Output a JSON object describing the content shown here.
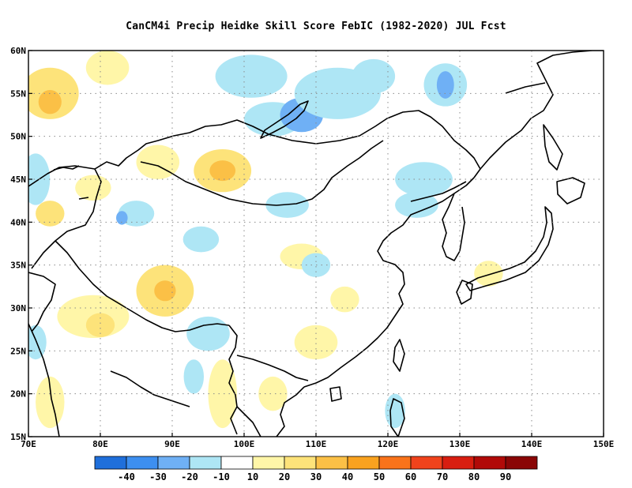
{
  "title": "CanCM4i Precip Heidke Skill Score FebIC (1982-2020) JUL Fcst",
  "lon_ticks": [
    "70E",
    "80E",
    "90E",
    "100E",
    "110E",
    "120E",
    "130E",
    "140E",
    "150E"
  ],
  "lat_ticks": [
    "15N",
    "20N",
    "25N",
    "30N",
    "35N",
    "40N",
    "45N",
    "50N",
    "55N",
    "60N"
  ],
  "extent": {
    "lon": [
      70,
      150
    ],
    "lat": [
      15,
      60
    ]
  },
  "grid": true,
  "colorbar": {
    "colors": [
      "#1f6fdb",
      "#3d8ff0",
      "#6fb0f5",
      "#aee6f5",
      "#ffffff",
      "#fff6a8",
      "#fde37a",
      "#fbc046",
      "#f9a21f",
      "#f9731a",
      "#f0431c",
      "#d81e10",
      "#b10a08",
      "#8a0606"
    ],
    "labels": [
      "-40",
      "-30",
      "-20",
      "-10",
      "10",
      "20",
      "30",
      "40",
      "50",
      "60",
      "70",
      "80",
      "90"
    ]
  },
  "field_patches": [
    {
      "lon": 73,
      "lat": 55,
      "rx": 4,
      "ry": 3,
      "c": "#fde37a"
    },
    {
      "lon": 73,
      "lat": 54,
      "rx": 1.6,
      "ry": 1.4,
      "c": "#fbc046"
    },
    {
      "lon": 81,
      "lat": 58,
      "rx": 3,
      "ry": 2,
      "c": "#fff6a8"
    },
    {
      "lon": 71,
      "lat": 45,
      "rx": 2,
      "ry": 3,
      "c": "#aee6f5"
    },
    {
      "lon": 73,
      "lat": 41,
      "rx": 2,
      "ry": 1.5,
      "c": "#fde37a"
    },
    {
      "lon": 79,
      "lat": 44,
      "rx": 2.5,
      "ry": 1.5,
      "c": "#fff6a8"
    },
    {
      "lon": 88,
      "lat": 47,
      "rx": 3,
      "ry": 2,
      "c": "#fff6a8"
    },
    {
      "lon": 97,
      "lat": 46,
      "rx": 4,
      "ry": 2.5,
      "c": "#fde37a"
    },
    {
      "lon": 97,
      "lat": 46,
      "rx": 1.8,
      "ry": 1.2,
      "c": "#fbc046"
    },
    {
      "lon": 101,
      "lat": 57,
      "rx": 5,
      "ry": 2.5,
      "c": "#aee6f5"
    },
    {
      "lon": 104,
      "lat": 52,
      "rx": 4,
      "ry": 2,
      "c": "#aee6f5"
    },
    {
      "lon": 108,
      "lat": 52.5,
      "rx": 3,
      "ry": 2,
      "c": "#6fb0f5"
    },
    {
      "lon": 113,
      "lat": 55,
      "rx": 6,
      "ry": 3,
      "c": "#aee6f5"
    },
    {
      "lon": 118,
      "lat": 57,
      "rx": 3,
      "ry": 2,
      "c": "#aee6f5"
    },
    {
      "lon": 128,
      "lat": 56,
      "rx": 3,
      "ry": 2.5,
      "c": "#aee6f5"
    },
    {
      "lon": 128,
      "lat": 56,
      "rx": 1.2,
      "ry": 1.6,
      "c": "#6fb0f5"
    },
    {
      "lon": 125,
      "lat": 45,
      "rx": 4,
      "ry": 2,
      "c": "#aee6f5"
    },
    {
      "lon": 124,
      "lat": 42,
      "rx": 3,
      "ry": 1.5,
      "c": "#aee6f5"
    },
    {
      "lon": 106,
      "lat": 42,
      "rx": 3,
      "ry": 1.5,
      "c": "#aee6f5"
    },
    {
      "lon": 85,
      "lat": 41,
      "rx": 2.5,
      "ry": 1.5,
      "c": "#aee6f5"
    },
    {
      "lon": 83,
      "lat": 40.5,
      "rx": 0.8,
      "ry": 0.8,
      "c": "#6fb0f5"
    },
    {
      "lon": 94,
      "lat": 38,
      "rx": 2.5,
      "ry": 1.5,
      "c": "#aee6f5"
    },
    {
      "lon": 108,
      "lat": 36,
      "rx": 3,
      "ry": 1.5,
      "c": "#fff6a8"
    },
    {
      "lon": 110,
      "lat": 35,
      "rx": 2,
      "ry": 1.4,
      "c": "#aee6f5"
    },
    {
      "lon": 89,
      "lat": 32,
      "rx": 4,
      "ry": 3,
      "c": "#fde37a"
    },
    {
      "lon": 89,
      "lat": 32,
      "rx": 1.5,
      "ry": 1.2,
      "c": "#fbc046"
    },
    {
      "lon": 79,
      "lat": 29,
      "rx": 5,
      "ry": 2.5,
      "c": "#fff6a8"
    },
    {
      "lon": 80,
      "lat": 28,
      "rx": 2,
      "ry": 1.4,
      "c": "#fde37a"
    },
    {
      "lon": 95,
      "lat": 27,
      "rx": 3,
      "ry": 2,
      "c": "#aee6f5"
    },
    {
      "lon": 97,
      "lat": 20,
      "rx": 2,
      "ry": 4,
      "c": "#fff6a8"
    },
    {
      "lon": 93,
      "lat": 22,
      "rx": 1.4,
      "ry": 2,
      "c": "#aee6f5"
    },
    {
      "lon": 110,
      "lat": 26,
      "rx": 3,
      "ry": 2,
      "c": "#fff6a8"
    },
    {
      "lon": 114,
      "lat": 31,
      "rx": 2,
      "ry": 1.5,
      "c": "#fff6a8"
    },
    {
      "lon": 104,
      "lat": 20,
      "rx": 2,
      "ry": 2,
      "c": "#fff6a8"
    },
    {
      "lon": 121,
      "lat": 18,
      "rx": 1.4,
      "ry": 2,
      "c": "#aee6f5"
    },
    {
      "lon": 134,
      "lat": 34,
      "rx": 2,
      "ry": 1.5,
      "c": "#fff6a8"
    },
    {
      "lon": 73,
      "lat": 19,
      "rx": 2,
      "ry": 3,
      "c": "#fff6a8"
    },
    {
      "lon": 71,
      "lat": 26,
      "rx": 1.5,
      "ry": 2,
      "c": "#aee6f5"
    }
  ]
}
